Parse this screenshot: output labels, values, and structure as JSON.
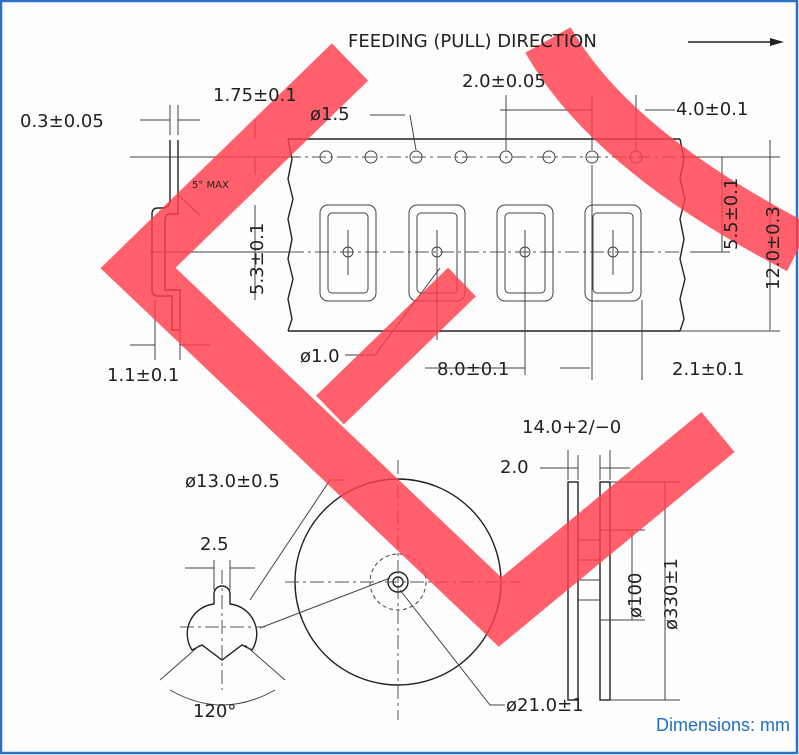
{
  "title": "FEEDING (PULL) DIRECTION",
  "dimensions": {
    "sprocket_pitch_tol": "2.0±0.05",
    "edge_to_hole": "1.75±0.1",
    "tape_thickness": "0.3±0.05",
    "sprocket_hole": "ø1.5",
    "sprocket_pitch": "4.0±0.1",
    "angle": "5° MAX",
    "pocket_depth": "5.3±0.1",
    "hole_to_pocket": "5.5±0.1",
    "tape_width": "12.0±0.3",
    "pocket_hole": "ø1.0",
    "pocket_pitch": "8.0±0.1",
    "pocket_offset": "2.1±0.1",
    "cover_thickness": "1.1±0.1",
    "reel_width": "14.0+2/−0",
    "arbor_hole": "ø13.0±0.5",
    "flange_thickness": "2.0",
    "key_width": "2.5",
    "hub_diameter": "ø100",
    "reel_diameter": "ø330±1",
    "key_angle": "120°",
    "hub_hole": "ø21.0±1"
  },
  "footer": "Dimensions: mm"
}
